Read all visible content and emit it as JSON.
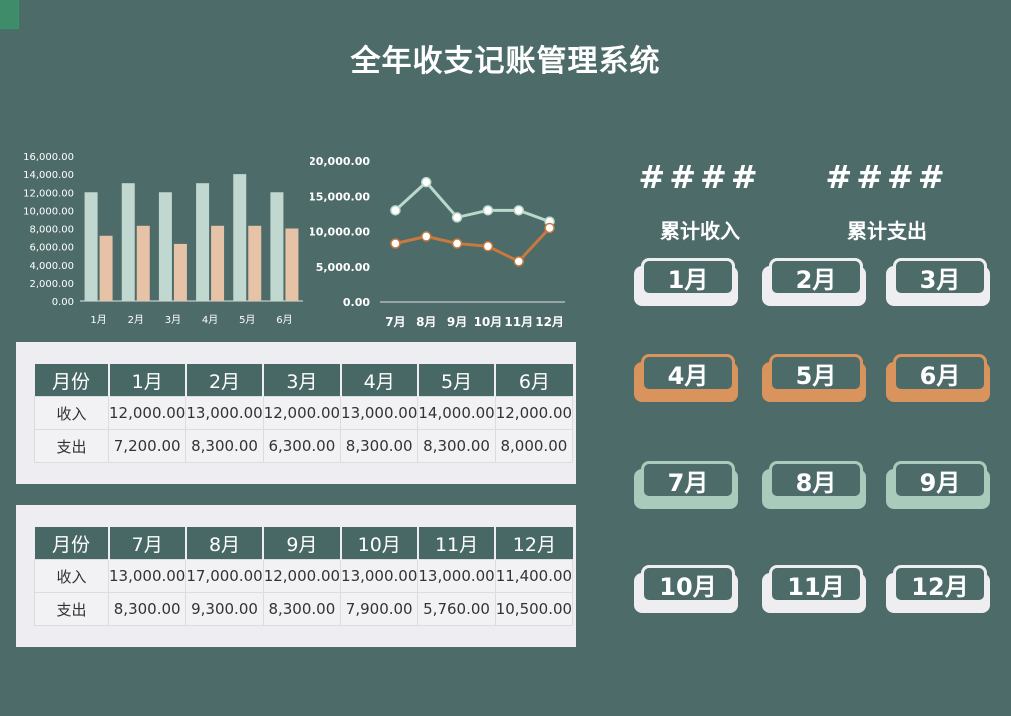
{
  "title": "全年收支记账管理系统",
  "kpis": [
    {
      "value": "####",
      "label": "累计收入"
    },
    {
      "value": "####",
      "label": "累计支出"
    }
  ],
  "tables": [
    {
      "header": [
        "月份",
        "1月",
        "2月",
        "3月",
        "4月",
        "5月",
        "6月"
      ],
      "rows": [
        [
          "收入",
          "12,000.00",
          "13,000.00",
          "12,000.00",
          "13,000.00",
          "14,000.00",
          "12,000.00"
        ],
        [
          "支出",
          "7,200.00",
          "8,300.00",
          "6,300.00",
          "8,300.00",
          "8,300.00",
          "8,000.00"
        ]
      ]
    },
    {
      "header": [
        "月份",
        "7月",
        "8月",
        "9月",
        "10月",
        "11月",
        "12月"
      ],
      "rows": [
        [
          "收入",
          "13,000.00",
          "17,000.00",
          "12,000.00",
          "13,000.00",
          "13,000.00",
          "11,400.00"
        ],
        [
          "支出",
          "8,300.00",
          "9,300.00",
          "8,300.00",
          "7,900.00",
          "5,760.00",
          "10,500.00"
        ]
      ]
    }
  ],
  "month_buttons": [
    {
      "label": "1月",
      "color": "#eeeef0"
    },
    {
      "label": "2月",
      "color": "#eeeef0"
    },
    {
      "label": "3月",
      "color": "#eeeef0"
    },
    {
      "label": "4月",
      "color": "#d9935c"
    },
    {
      "label": "5月",
      "color": "#d9935c"
    },
    {
      "label": "6月",
      "color": "#d9935c"
    },
    {
      "label": "7月",
      "color": "#a8cbbc"
    },
    {
      "label": "8月",
      "color": "#a8cbbc"
    },
    {
      "label": "9月",
      "color": "#a8cbbc"
    },
    {
      "label": "10月",
      "color": "#eeeef0"
    },
    {
      "label": "11月",
      "color": "#eeeef0"
    },
    {
      "label": "12月",
      "color": "#eeeef0"
    }
  ],
  "chart_data": [
    {
      "type": "bar",
      "categories": [
        "1月",
        "2月",
        "3月",
        "4月",
        "5月",
        "6月"
      ],
      "series": [
        {
          "values": [
            12000,
            13000,
            12000,
            13000,
            14000,
            12000
          ],
          "color": "#c0d8cf"
        },
        {
          "values": [
            7200,
            8300,
            6300,
            8300,
            8300,
            8000
          ],
          "color": "#e6c2a6"
        }
      ],
      "ylim": [
        0,
        16000
      ],
      "yticks": [
        "0.00",
        "2,000.00",
        "4,000.00",
        "6,000.00",
        "8,000.00",
        "10,000.00",
        "12,000.00",
        "14,000.00",
        "16,000.00"
      ],
      "grid": false
    },
    {
      "type": "line",
      "categories": [
        "7月",
        "8月",
        "9月",
        "10月",
        "11月",
        "12月"
      ],
      "series": [
        {
          "values": [
            13000,
            17000,
            12000,
            13000,
            13000,
            11400
          ],
          "color": "#bcd8cc"
        },
        {
          "values": [
            8300,
            9300,
            8300,
            7900,
            5760,
            10500
          ],
          "color": "#c87a3e"
        }
      ],
      "ylim": [
        0,
        20000
      ],
      "yticks": [
        "0.00",
        "5,000.00",
        "10,000.00",
        "15,000.00",
        "20,000.00"
      ],
      "grid": false
    }
  ]
}
